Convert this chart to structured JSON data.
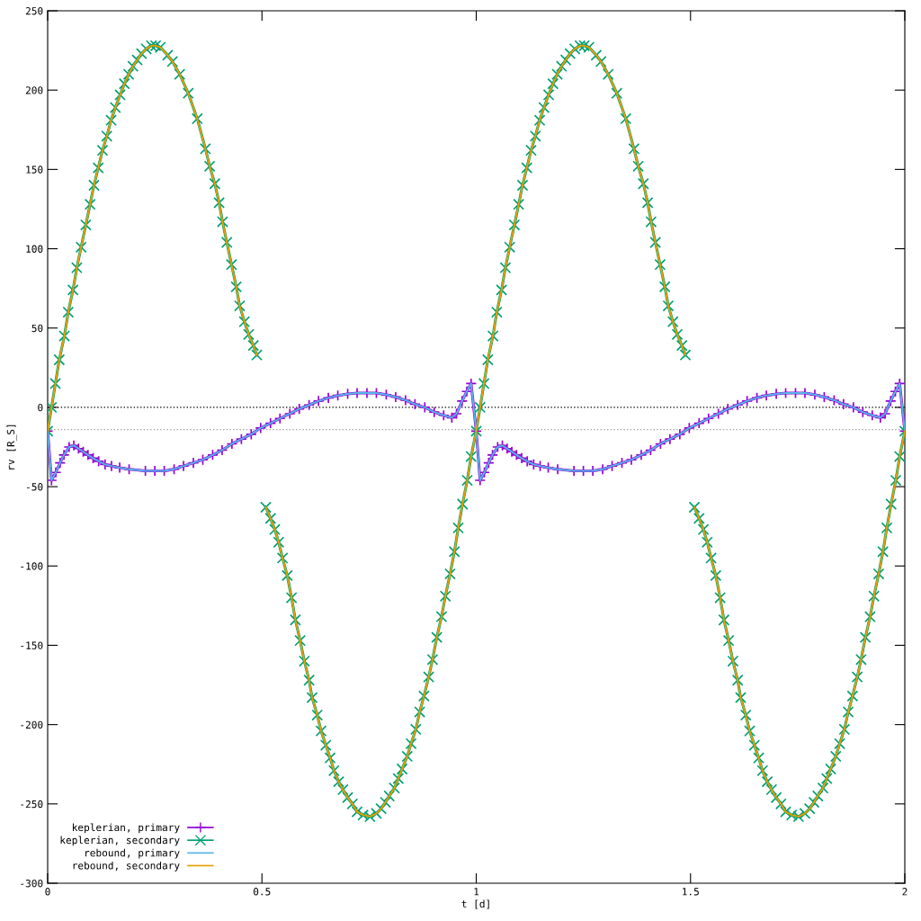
{
  "chart_data": {
    "type": "line",
    "xlabel": "t [d]",
    "ylabel": "rv [R_S]",
    "xlim": [
      0,
      2
    ],
    "xticks": [
      0,
      0.5,
      1,
      1.5,
      2
    ],
    "ylim": [
      -300,
      250
    ],
    "yticks": [
      -300,
      -250,
      -200,
      -150,
      -100,
      -50,
      0,
      50,
      100,
      150,
      200,
      250
    ],
    "grid": false,
    "legend": "bottom left",
    "ref_lines": [
      {
        "axis": "y",
        "value": 0,
        "label": null,
        "color": "#000000",
        "line_style": "dotted"
      },
      {
        "axis": "y",
        "value": -14,
        "label": null,
        "color": "#a0a0a0",
        "line_style": "dotted"
      }
    ],
    "series": [
      {
        "name": "keplerian, primary",
        "color": "#9400d3",
        "marker": "plus",
        "line_style": "solid",
        "x": [
          0,
          0.009,
          0.019,
          0.029,
          0.038,
          0.05,
          0.061,
          0.072,
          0.083,
          0.094,
          0.106,
          0.119,
          0.134,
          0.149,
          0.168,
          0.19,
          0.228,
          0.25,
          0.272,
          0.295,
          0.317,
          0.34,
          0.362,
          0.385,
          0.407,
          0.43,
          0.452,
          0.475,
          0.497,
          0.52,
          0.542,
          0.565,
          0.587,
          0.61,
          0.632,
          0.655,
          0.677,
          0.7,
          0.722,
          0.745,
          0.767,
          0.79,
          0.812,
          0.835,
          0.857,
          0.88,
          0.902,
          0.924,
          0.943,
          0.954,
          0.967,
          0.978,
          0.988,
          1,
          1.009,
          1.019,
          1.029,
          1.038,
          1.05,
          1.061,
          1.072,
          1.083,
          1.094,
          1.106,
          1.119,
          1.134,
          1.149,
          1.168,
          1.19,
          1.228,
          1.25,
          1.272,
          1.295,
          1.317,
          1.34,
          1.362,
          1.385,
          1.407,
          1.43,
          1.452,
          1.475,
          1.497,
          1.52,
          1.542,
          1.565,
          1.587,
          1.61,
          1.632,
          1.655,
          1.677,
          1.7,
          1.722,
          1.745,
          1.767,
          1.79,
          1.812,
          1.835,
          1.857,
          1.88,
          1.902,
          1.924,
          1.943,
          1.954,
          1.967,
          1.978,
          1.988,
          2
        ],
        "values": [
          -15,
          -46,
          -41,
          -35,
          -30,
          -25,
          -24,
          -26,
          -28,
          -30,
          -32,
          -34,
          -36,
          -37,
          -38,
          -39,
          -40,
          -40,
          -40,
          -39,
          -37,
          -35,
          -33,
          -30,
          -27,
          -23,
          -20,
          -17,
          -13,
          -10,
          -7,
          -4,
          -1,
          1.5,
          4,
          6,
          7.5,
          8.5,
          9,
          9,
          9,
          8,
          6.5,
          4.5,
          2,
          0,
          -3,
          -5,
          -6.5,
          -4,
          4,
          10,
          15,
          -15,
          -46,
          -41,
          -35,
          -30,
          -25,
          -24,
          -26,
          -28,
          -30,
          -32,
          -34,
          -36,
          -37,
          -38,
          -39,
          -40,
          -40,
          -40,
          -39,
          -37,
          -35,
          -33,
          -30,
          -27,
          -23,
          -20,
          -17,
          -13,
          -10,
          -7,
          -4,
          -1,
          1.5,
          4,
          6,
          7.5,
          8.5,
          9,
          9,
          9,
          8,
          6.5,
          4.5,
          2,
          0,
          -3,
          -5,
          -6.5,
          -4,
          4,
          10,
          15,
          -15
        ]
      },
      {
        "name": "keplerian, secondary",
        "color": "#009e73",
        "marker": "cross",
        "line_style": "solid",
        "x": [
          0,
          0.009,
          0.018,
          0.027,
          0.039,
          0.048,
          0.059,
          0.068,
          0.078,
          0.089,
          0.099,
          0.108,
          0.118,
          0.128,
          0.138,
          0.148,
          0.158,
          0.169,
          0.179,
          0.189,
          0.199,
          0.209,
          0.219,
          0.23,
          0.242,
          0.252,
          0.263,
          0.28,
          0.291,
          0.308,
          0.328,
          0.349,
          0.368,
          0.378,
          0.39,
          0.4,
          0.408,
          0.418,
          0.429,
          0.44,
          0.448,
          0.459,
          0.469,
          0.48,
          0.488,
          0.5,
          0.509,
          0.52,
          0.53,
          0.539,
          0.548,
          0.559,
          0.569,
          0.578,
          0.589,
          0.599,
          0.61,
          0.617,
          0.629,
          0.638,
          0.649,
          0.659,
          0.668,
          0.679,
          0.689,
          0.7,
          0.711,
          0.722,
          0.736,
          0.752,
          0.767,
          0.778,
          0.788,
          0.797,
          0.809,
          0.818,
          0.827,
          0.839,
          0.848,
          0.859,
          0.868,
          0.878,
          0.889,
          0.898,
          0.908,
          0.919,
          0.928,
          0.939,
          0.949,
          0.958,
          0.968,
          0.979,
          0.988,
          1,
          1.009,
          1.018,
          1.027,
          1.039,
          1.048,
          1.059,
          1.068,
          1.078,
          1.089,
          1.099,
          1.108,
          1.118,
          1.128,
          1.138,
          1.148,
          1.158,
          1.169,
          1.179,
          1.189,
          1.199,
          1.209,
          1.219,
          1.23,
          1.242,
          1.252,
          1.263,
          1.28,
          1.291,
          1.308,
          1.328,
          1.349,
          1.368,
          1.378,
          1.39,
          1.4,
          1.408,
          1.418,
          1.429,
          1.44,
          1.448,
          1.459,
          1.469,
          1.48,
          1.488,
          1.5,
          1.509,
          1.52,
          1.53,
          1.539,
          1.548,
          1.559,
          1.569,
          1.578,
          1.589,
          1.599,
          1.61,
          1.617,
          1.629,
          1.638,
          1.649,
          1.659,
          1.668,
          1.679,
          1.689,
          1.7,
          1.711,
          1.722,
          1.736,
          1.752,
          1.767,
          1.778,
          1.788,
          1.797,
          1.809,
          1.818,
          1.827,
          1.839,
          1.848,
          1.859,
          1.868,
          1.878,
          1.889,
          1.898,
          1.908,
          1.919,
          1.928,
          1.939,
          1.949,
          1.958,
          1.968,
          1.979,
          1.988,
          2
        ],
        "values": [
          -15,
          0,
          15,
          30,
          45,
          60,
          74,
          88,
          101,
          115,
          128,
          140,
          151,
          162,
          171,
          181,
          189,
          197,
          204,
          210,
          215,
          219,
          223,
          226,
          228,
          228,
          227,
          222,
          218,
          210,
          198,
          182,
          163,
          152,
          141,
          129,
          117,
          104,
          90,
          76,
          64,
          54,
          46,
          39,
          33,
          null,
          -63,
          -70,
          -77,
          -85,
          -95,
          -106,
          -120,
          -134,
          -147,
          -160,
          -172,
          -183,
          -194,
          -204,
          -213,
          -221,
          -229,
          -236,
          -241,
          -246,
          -250,
          -255,
          -257,
          -258,
          -256,
          -253,
          -249,
          -245,
          -240,
          -234,
          -228,
          -220,
          -212,
          -203,
          -192,
          -182,
          -170,
          -159,
          -145,
          -132,
          -119,
          -105,
          -91,
          -76,
          -61,
          -46,
          -31,
          -15,
          0,
          15,
          30,
          45,
          60,
          74,
          88,
          101,
          115,
          128,
          140,
          151,
          162,
          171,
          181,
          189,
          197,
          204,
          210,
          215,
          219,
          223,
          226,
          228,
          228,
          227,
          222,
          218,
          210,
          198,
          182,
          163,
          152,
          141,
          129,
          117,
          104,
          90,
          76,
          64,
          54,
          46,
          39,
          33,
          null,
          -63,
          -70,
          -77,
          -85,
          -95,
          -106,
          -120,
          -134,
          -147,
          -160,
          -172,
          -183,
          -194,
          -204,
          -213,
          -221,
          -229,
          -236,
          -241,
          -246,
          -250,
          -255,
          -257,
          -258,
          -256,
          -253,
          -249,
          -245,
          -240,
          -234,
          -228,
          -220,
          -212,
          -203,
          -192,
          -182,
          -170,
          -159,
          -145,
          -132,
          -119,
          -105,
          -91,
          -76,
          -61,
          -46,
          -31,
          -15
        ]
      },
      {
        "name": "rebound, primary",
        "color": "#56b4e9",
        "marker": "none",
        "line_style": "solid",
        "x": [
          0,
          0.009,
          0.019,
          0.029,
          0.038,
          0.05,
          0.061,
          0.072,
          0.083,
          0.094,
          0.106,
          0.119,
          0.134,
          0.149,
          0.168,
          0.19,
          0.228,
          0.25,
          0.272,
          0.295,
          0.317,
          0.34,
          0.362,
          0.385,
          0.407,
          0.43,
          0.452,
          0.475,
          0.497,
          0.52,
          0.542,
          0.565,
          0.587,
          0.61,
          0.632,
          0.655,
          0.677,
          0.7,
          0.722,
          0.745,
          0.767,
          0.79,
          0.812,
          0.835,
          0.857,
          0.88,
          0.902,
          0.924,
          0.943,
          0.954,
          0.967,
          0.978,
          0.988,
          1,
          1.009,
          1.019,
          1.029,
          1.038,
          1.05,
          1.061,
          1.072,
          1.083,
          1.094,
          1.106,
          1.119,
          1.134,
          1.149,
          1.168,
          1.19,
          1.228,
          1.25,
          1.272,
          1.295,
          1.317,
          1.34,
          1.362,
          1.385,
          1.407,
          1.43,
          1.452,
          1.475,
          1.497,
          1.52,
          1.542,
          1.565,
          1.587,
          1.61,
          1.632,
          1.655,
          1.677,
          1.7,
          1.722,
          1.745,
          1.767,
          1.79,
          1.812,
          1.835,
          1.857,
          1.88,
          1.902,
          1.924,
          1.943,
          1.954,
          1.967,
          1.978,
          1.988,
          2
        ],
        "values": [
          -15,
          -46,
          -41,
          -35,
          -30,
          -25,
          -24,
          -26,
          -28,
          -30,
          -32,
          -34,
          -36,
          -37,
          -38,
          -39,
          -40,
          -40,
          -40,
          -39,
          -37,
          -35,
          -33,
          -30,
          -27,
          -23,
          -20,
          -17,
          -13,
          -10,
          -7,
          -4,
          -1,
          1.5,
          4,
          6,
          7.5,
          8.5,
          9,
          9,
          9,
          8,
          6.5,
          4.5,
          2,
          0,
          -3,
          -5,
          -6.5,
          -4,
          4,
          10,
          15,
          -15,
          -46,
          -41,
          -35,
          -30,
          -25,
          -24,
          -26,
          -28,
          -30,
          -32,
          -34,
          -36,
          -37,
          -38,
          -39,
          -40,
          -40,
          -40,
          -39,
          -37,
          -35,
          -33,
          -30,
          -27,
          -23,
          -20,
          -17,
          -13,
          -10,
          -7,
          -4,
          -1,
          1.5,
          4,
          6,
          7.5,
          8.5,
          9,
          9,
          9,
          8,
          6.5,
          4.5,
          2,
          0,
          -3,
          -5,
          -6.5,
          -4,
          4,
          10,
          15,
          -15
        ]
      },
      {
        "name": "rebound, secondary",
        "color": "#e69f00",
        "marker": "none",
        "line_style": "solid",
        "x": [
          0,
          0.009,
          0.018,
          0.027,
          0.039,
          0.048,
          0.059,
          0.068,
          0.078,
          0.089,
          0.099,
          0.108,
          0.118,
          0.128,
          0.138,
          0.148,
          0.158,
          0.169,
          0.179,
          0.189,
          0.199,
          0.209,
          0.219,
          0.23,
          0.242,
          0.252,
          0.263,
          0.28,
          0.291,
          0.308,
          0.328,
          0.349,
          0.368,
          0.378,
          0.39,
          0.4,
          0.408,
          0.418,
          0.429,
          0.44,
          0.448,
          0.459,
          0.469,
          0.48,
          0.488,
          0.5,
          0.509,
          0.52,
          0.53,
          0.539,
          0.548,
          0.559,
          0.569,
          0.578,
          0.589,
          0.599,
          0.61,
          0.617,
          0.629,
          0.638,
          0.649,
          0.659,
          0.668,
          0.679,
          0.689,
          0.7,
          0.711,
          0.722,
          0.736,
          0.752,
          0.767,
          0.778,
          0.788,
          0.797,
          0.809,
          0.818,
          0.827,
          0.839,
          0.848,
          0.859,
          0.868,
          0.878,
          0.889,
          0.898,
          0.908,
          0.919,
          0.928,
          0.939,
          0.949,
          0.958,
          0.968,
          0.979,
          0.988,
          1,
          1.009,
          1.018,
          1.027,
          1.039,
          1.048,
          1.059,
          1.068,
          1.078,
          1.089,
          1.099,
          1.108,
          1.118,
          1.128,
          1.138,
          1.148,
          1.158,
          1.169,
          1.179,
          1.189,
          1.199,
          1.209,
          1.219,
          1.23,
          1.242,
          1.252,
          1.263,
          1.28,
          1.291,
          1.308,
          1.328,
          1.349,
          1.368,
          1.378,
          1.39,
          1.4,
          1.408,
          1.418,
          1.429,
          1.44,
          1.448,
          1.459,
          1.469,
          1.48,
          1.488,
          1.5,
          1.509,
          1.52,
          1.53,
          1.539,
          1.548,
          1.559,
          1.569,
          1.578,
          1.589,
          1.599,
          1.61,
          1.617,
          1.629,
          1.638,
          1.649,
          1.659,
          1.668,
          1.679,
          1.689,
          1.7,
          1.711,
          1.722,
          1.736,
          1.752,
          1.767,
          1.778,
          1.788,
          1.797,
          1.809,
          1.818,
          1.827,
          1.839,
          1.848,
          1.859,
          1.868,
          1.878,
          1.889,
          1.898,
          1.908,
          1.919,
          1.928,
          1.939,
          1.949,
          1.958,
          1.968,
          1.979,
          1.988,
          2
        ],
        "values": [
          -15,
          0,
          15,
          30,
          45,
          60,
          74,
          88,
          101,
          115,
          128,
          140,
          151,
          162,
          171,
          181,
          189,
          197,
          204,
          210,
          215,
          219,
          223,
          226,
          228,
          228,
          227,
          222,
          218,
          210,
          198,
          182,
          163,
          152,
          141,
          129,
          117,
          104,
          90,
          76,
          64,
          54,
          46,
          39,
          33,
          null,
          -63,
          -70,
          -77,
          -85,
          -95,
          -106,
          -120,
          -134,
          -147,
          -160,
          -172,
          -183,
          -194,
          -204,
          -213,
          -221,
          -229,
          -236,
          -241,
          -246,
          -250,
          -255,
          -257,
          -258,
          -256,
          -253,
          -249,
          -245,
          -240,
          -234,
          -228,
          -220,
          -212,
          -203,
          -192,
          -182,
          -170,
          -159,
          -145,
          -132,
          -119,
          -105,
          -91,
          -76,
          -61,
          -46,
          -31,
          -15,
          0,
          15,
          30,
          45,
          60,
          74,
          88,
          101,
          115,
          128,
          140,
          151,
          162,
          171,
          181,
          189,
          197,
          204,
          210,
          215,
          219,
          223,
          226,
          228,
          228,
          227,
          222,
          218,
          210,
          198,
          182,
          163,
          152,
          141,
          129,
          117,
          104,
          90,
          76,
          64,
          54,
          46,
          39,
          33,
          null,
          -63,
          -70,
          -77,
          -85,
          -95,
          -106,
          -120,
          -134,
          -147,
          -160,
          -172,
          -183,
          -194,
          -204,
          -213,
          -221,
          -229,
          -236,
          -241,
          -246,
          -250,
          -255,
          -257,
          -258,
          -256,
          -253,
          -249,
          -245,
          -240,
          -234,
          -228,
          -220,
          -212,
          -203,
          -192,
          -182,
          -170,
          -159,
          -145,
          -132,
          -119,
          -105,
          -91,
          -76,
          -61,
          -46,
          -31,
          -15
        ]
      }
    ]
  }
}
